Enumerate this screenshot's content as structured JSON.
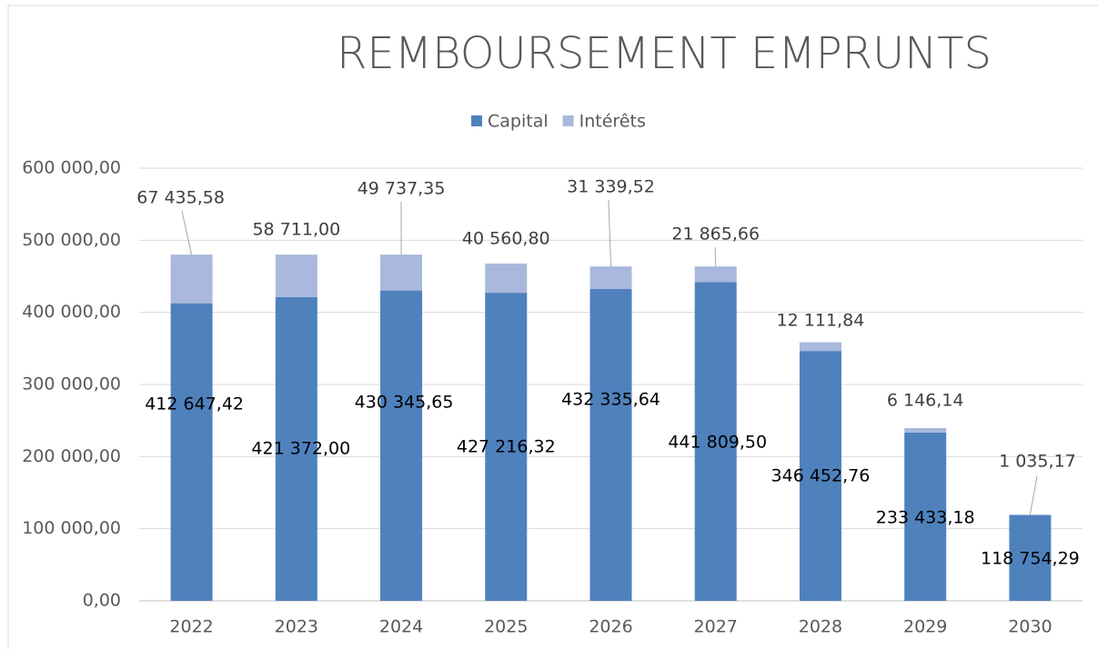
{
  "chart_data": {
    "type": "stacked_bar",
    "title": "REMBOURSEMENT EMPRUNTS",
    "categories": [
      "2022",
      "2023",
      "2024",
      "2025",
      "2026",
      "2027",
      "2028",
      "2029",
      "2030"
    ],
    "series": [
      {
        "name": "Capital",
        "color": "#4f81bd",
        "values": [
          412647.42,
          421372.0,
          430345.65,
          427216.32,
          432335.64,
          441809.5,
          346452.76,
          233433.18,
          118754.29
        ],
        "value_labels": [
          "412 647,42",
          "421 372,00",
          "430 345,65",
          "427 216,32",
          "432 335,64",
          "441 809,50",
          "346 452,76",
          "233 433,18",
          "118 754,29"
        ]
      },
      {
        "name": "Intérêts",
        "color": "#a9b8dc",
        "values": [
          67435.58,
          58711.0,
          49737.35,
          40560.8,
          31339.52,
          21865.66,
          12111.84,
          6146.14,
          1035.17
        ],
        "value_labels": [
          "67 435,58",
          "58 711,00",
          "49 737,35",
          "40 560,80",
          "31 339,52",
          "21 865,66",
          "12 111,84",
          "6 146,14",
          "1 035,17"
        ]
      }
    ],
    "ylim": [
      0,
      600000
    ],
    "yticks": [
      {
        "value": 0,
        "label": "0,00"
      },
      {
        "value": 100000,
        "label": "100 000,00"
      },
      {
        "value": 200000,
        "label": "200 000,00"
      },
      {
        "value": 300000,
        "label": "300 000,00"
      },
      {
        "value": 400000,
        "label": "400 000,00"
      },
      {
        "value": 500000,
        "label": "500 000,00"
      },
      {
        "value": 600000,
        "label": "600 000,00"
      }
    ],
    "grid": true,
    "legend": "top"
  }
}
